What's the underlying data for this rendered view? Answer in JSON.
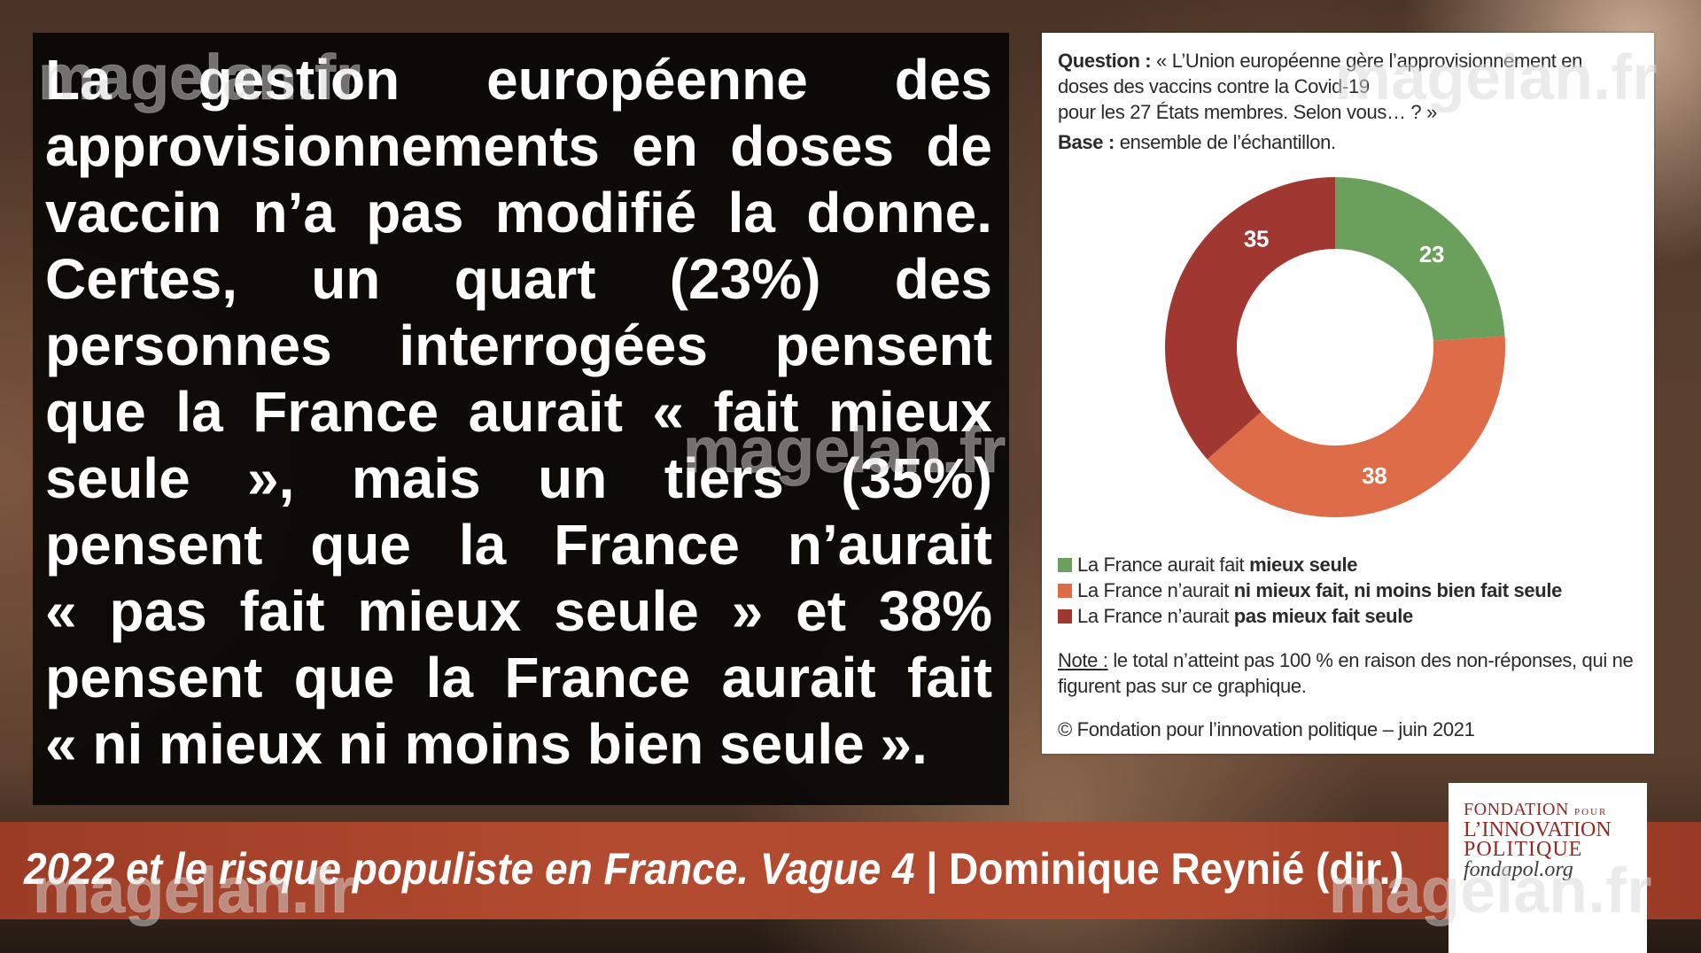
{
  "main_text": {
    "lines": [
      "La gestion européenne des",
      "approvisionnements en doses de",
      "vaccin n’a pas modifié la donne.",
      "Certes, un quart (23%) des",
      "personnes interrogées pensent",
      "que la France aurait « fait mieux",
      "seule », mais un tiers (35%)",
      "pensent que la France n’aurait",
      "« pas fait mieux seule » et 38%",
      "pensent que la France aurait fait",
      "« ni mieux ni moins bien seule »."
    ]
  },
  "chart_data": {
    "type": "pie",
    "donut": true,
    "question_label": "Question :",
    "question_lines": [
      "« L’Union européenne gère l’approvisionnement en",
      "doses des vaccins contre la Covid-19",
      "pour les 27 États membres. Selon vous… ? »"
    ],
    "base_label": "Base :",
    "base_text": "ensemble de l’échantillon.",
    "slices": [
      {
        "label_regular": "La France aurait fait ",
        "label_bold": "mieux seule",
        "value": 23,
        "color": "#6b9f5c"
      },
      {
        "label_regular": "La France n’aurait ",
        "label_bold": "ni mieux fait, ni moins bien fait seule",
        "value": 38,
        "color": "#df6c48"
      },
      {
        "label_regular": "La France n’aurait ",
        "label_bold": "pas mieux fait seule",
        "value": 35,
        "color": "#a13731"
      }
    ],
    "note_label": "Note :",
    "note_lines": [
      "le total n’atteint pas 100 % en raison des non-réponses, qui ne",
      "figurent pas sur ce graphique."
    ],
    "source": "© Fondation pour l’innovation politique – juin 2021"
  },
  "footer": {
    "title_italic": "2022 et le risque populiste en France. Vague 4",
    "separator": "|",
    "author": "Dominique Reynié (dir.)"
  },
  "logo": {
    "line1": "FONDATION",
    "line1_small": "POUR",
    "line2": "L’INNOVATION",
    "line3": "POLITIQUE",
    "url": "fondapol.org"
  },
  "watermark": "magelan.fr",
  "colors": {
    "text_box": "#090706",
    "band": "#b14a2f",
    "logo_red": "#8f2b22",
    "label_text": "#ffffff"
  }
}
